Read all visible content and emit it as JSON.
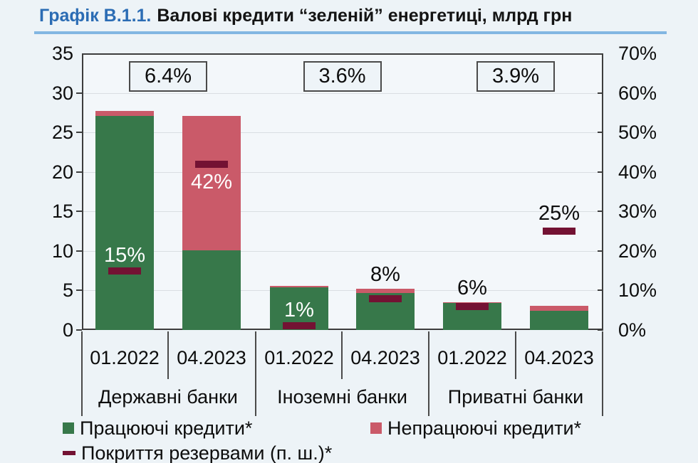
{
  "title": {
    "prefix": "Графік В.1.1.",
    "text": "Валові кредити “зеленій” енергетиці, млрд грн"
  },
  "colors": {
    "performing_green": "#37784a",
    "npl_pink": "#ca5a69",
    "coverage_maroon": "#731233",
    "title_blue": "#2b6cb4",
    "underline_blue": "#82b6e2",
    "background": "#edf3f7"
  },
  "chart_data": {
    "type": "bar",
    "stacked": true,
    "title": "Валові кредити “зеленій” енергетиці, млрд грн",
    "groups": [
      "Державні банки",
      "Іноземні банки",
      "Приватні банки"
    ],
    "categories": [
      "01.2022",
      "04.2023",
      "01.2022",
      "04.2023",
      "01.2022",
      "04.2023"
    ],
    "series": [
      {
        "name": "Працюючі кредити*",
        "color": "#37784a",
        "values": [
          27.1,
          10.1,
          5.4,
          4.7,
          3.4,
          2.4
        ]
      },
      {
        "name": "Непрацюючі кредити*",
        "color": "#ca5a69",
        "values": [
          0.6,
          17.0,
          0.2,
          0.5,
          0.1,
          0.7
        ]
      },
      {
        "name": "Покриття резервами (п. ш.)*",
        "color": "#731233",
        "axis": "right",
        "values_pct": [
          15,
          42,
          1,
          8,
          6,
          25
        ]
      }
    ],
    "bars": [
      {
        "group": "Державні банки",
        "period": "01.2022",
        "performing": 27.1,
        "npl": 0.6,
        "coverage_pct": 15,
        "coverage_label": "15%",
        "label_style": "white-above-dash"
      },
      {
        "group": "Державні банки",
        "period": "04.2023",
        "performing": 10.1,
        "npl": 17.0,
        "coverage_pct": 42,
        "coverage_label": "42%",
        "label_style": "white-below-dash"
      },
      {
        "group": "Іноземні банки",
        "period": "01.2022",
        "performing": 5.4,
        "npl": 0.2,
        "coverage_pct": 1,
        "coverage_label": "1%",
        "label_style": "white-above-dash"
      },
      {
        "group": "Іноземні банки",
        "period": "04.2023",
        "performing": 4.7,
        "npl": 0.5,
        "coverage_pct": 8,
        "coverage_label": "8%",
        "label_style": "black-above-bar"
      },
      {
        "group": "Приватні банки",
        "period": "01.2022",
        "performing": 3.4,
        "npl": 0.1,
        "coverage_pct": 6,
        "coverage_label": "6%",
        "label_style": "black-above-bar"
      },
      {
        "group": "Приватні банки",
        "period": "04.2023",
        "performing": 2.4,
        "npl": 0.7,
        "coverage_pct": 25,
        "coverage_label": "25%",
        "label_style": "black-above-dash"
      }
    ],
    "group_annotations": [
      "6.4%",
      "3.6%",
      "3.9%"
    ],
    "left_axis": {
      "ticks": [
        "35",
        "30",
        "25",
        "20",
        "15",
        "10",
        "5",
        "0"
      ],
      "range": [
        0,
        35
      ],
      "grid": true
    },
    "right_axis": {
      "ticks": [
        "70%",
        "60%",
        "50%",
        "40%",
        "30%",
        "20%",
        "10%",
        "0%"
      ],
      "range": [
        0,
        70
      ]
    },
    "legend_position": "bottom"
  },
  "legend": {
    "items": [
      {
        "label": "Працюючі кредити*",
        "swatch": "square",
        "color": "#37784a"
      },
      {
        "label": "Непрацюючі кредити*",
        "swatch": "square",
        "color": "#ca5a69"
      },
      {
        "label": "Покриття резервами (п. ш.)*",
        "swatch": "dash",
        "color": "#731233"
      }
    ]
  }
}
